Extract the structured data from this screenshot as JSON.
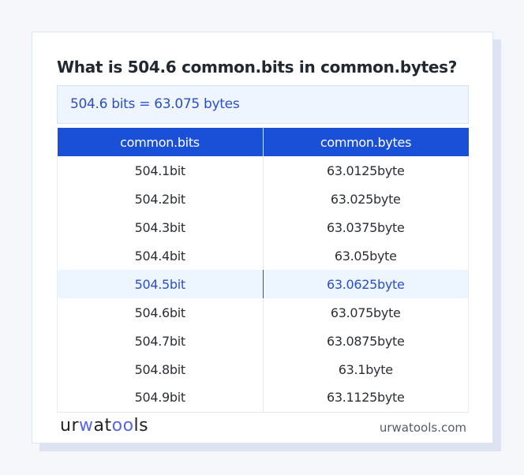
{
  "title": "What is 504.6 common.bits in common.bytes?",
  "result": "504.6 bits = 63.075 bytes",
  "table": {
    "headers": [
      "common.bits",
      "common.bytes"
    ],
    "rows": [
      [
        "504.1bit",
        "63.0125byte"
      ],
      [
        "504.2bit",
        "63.025byte"
      ],
      [
        "504.3bit",
        "63.0375byte"
      ],
      [
        "504.4bit",
        "63.05byte"
      ],
      [
        "504.5bit",
        "63.0625byte"
      ],
      [
        "504.6bit",
        "63.075byte"
      ],
      [
        "504.7bit",
        "63.0875byte"
      ],
      [
        "504.8bit",
        "63.1byte"
      ],
      [
        "504.9bit",
        "63.1125byte"
      ]
    ],
    "highlighted_row": 4
  },
  "footer": {
    "logo": "urwatools",
    "site": "urwatools.com"
  },
  "colors": {
    "accent": "#1a4fd8",
    "highlight_text": "#2d4fc4",
    "highlight_bg": "#edf5fe"
  }
}
